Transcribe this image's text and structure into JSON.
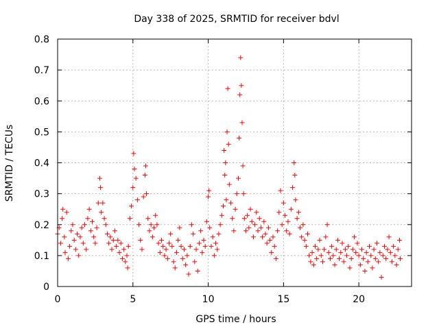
{
  "chart_data": {
    "type": "scatter",
    "title": "Day 338 of 2025, SRMTID for receiver bdvl",
    "xlabel": "GPS time / hours",
    "ylabel": "SRMTID / TECUs",
    "xlim": [
      0,
      23.5
    ],
    "ylim": [
      0,
      0.8
    ],
    "x_ticks": [
      "0",
      "5",
      "10",
      "15",
      "20"
    ],
    "x_tick_values": [
      0,
      5,
      10,
      15,
      20
    ],
    "y_ticks": [
      "0",
      "0.1",
      "0.2",
      "0.3",
      "0.4",
      "0.5",
      "0.6",
      "0.7",
      "0.8"
    ],
    "y_tick_values": [
      0,
      0.1,
      0.2,
      0.3,
      0.4,
      0.5,
      0.6,
      0.7,
      0.8
    ],
    "grid": true,
    "marker": "+",
    "color": "#ff0000",
    "series": [
      {
        "name": "SRMTID",
        "points": [
          [
            0.0,
            0.17
          ],
          [
            0.1,
            0.19
          ],
          [
            0.2,
            0.14
          ],
          [
            0.3,
            0.22
          ],
          [
            0.35,
            0.25
          ],
          [
            0.45,
            0.16
          ],
          [
            0.5,
            0.11
          ],
          [
            0.6,
            0.24
          ],
          [
            0.7,
            0.09
          ],
          [
            0.8,
            0.13
          ],
          [
            0.9,
            0.18
          ],
          [
            1.0,
            0.2
          ],
          [
            1.1,
            0.15
          ],
          [
            1.2,
            0.12
          ],
          [
            1.3,
            0.17
          ],
          [
            1.4,
            0.1
          ],
          [
            1.5,
            0.16
          ],
          [
            1.6,
            0.19
          ],
          [
            1.7,
            0.14
          ],
          [
            1.8,
            0.2
          ],
          [
            1.9,
            0.12
          ],
          [
            2.0,
            0.22
          ],
          [
            2.1,
            0.25
          ],
          [
            2.2,
            0.18
          ],
          [
            2.3,
            0.21
          ],
          [
            2.4,
            0.16
          ],
          [
            2.5,
            0.14
          ],
          [
            2.6,
            0.19
          ],
          [
            2.7,
            0.27
          ],
          [
            2.8,
            0.35
          ],
          [
            2.85,
            0.32
          ],
          [
            2.9,
            0.24
          ],
          [
            3.0,
            0.27
          ],
          [
            3.1,
            0.22
          ],
          [
            3.2,
            0.2
          ],
          [
            3.3,
            0.17
          ],
          [
            3.4,
            0.14
          ],
          [
            3.5,
            0.16
          ],
          [
            3.6,
            0.12
          ],
          [
            3.7,
            0.15
          ],
          [
            3.8,
            0.18
          ],
          [
            3.9,
            0.13
          ],
          [
            4.0,
            0.15
          ],
          [
            4.1,
            0.11
          ],
          [
            4.2,
            0.14
          ],
          [
            4.3,
            0.09
          ],
          [
            4.4,
            0.12
          ],
          [
            4.5,
            0.08
          ],
          [
            4.6,
            0.1
          ],
          [
            4.65,
            0.06
          ],
          [
            4.7,
            0.13
          ],
          [
            4.8,
            0.22
          ],
          [
            4.9,
            0.26
          ],
          [
            5.0,
            0.32
          ],
          [
            5.05,
            0.43
          ],
          [
            5.1,
            0.38
          ],
          [
            5.2,
            0.35
          ],
          [
            5.3,
            0.28
          ],
          [
            5.4,
            0.2
          ],
          [
            5.5,
            0.15
          ],
          [
            5.6,
            0.12
          ],
          [
            5.7,
            0.29
          ],
          [
            5.8,
            0.36
          ],
          [
            5.85,
            0.39
          ],
          [
            5.9,
            0.3
          ],
          [
            6.0,
            0.22
          ],
          [
            6.1,
            0.18
          ],
          [
            6.2,
            0.2
          ],
          [
            6.3,
            0.16
          ],
          [
            6.4,
            0.19
          ],
          [
            6.5,
            0.23
          ],
          [
            6.6,
            0.2
          ],
          [
            6.7,
            0.14
          ],
          [
            6.8,
            0.11
          ],
          [
            6.9,
            0.15
          ],
          [
            7.0,
            0.13
          ],
          [
            7.1,
            0.1
          ],
          [
            7.2,
            0.12
          ],
          [
            7.3,
            0.09
          ],
          [
            7.4,
            0.14
          ],
          [
            7.5,
            0.17
          ],
          [
            7.6,
            0.13
          ],
          [
            7.7,
            0.08
          ],
          [
            7.8,
            0.06
          ],
          [
            7.9,
            0.11
          ],
          [
            8.0,
            0.15
          ],
          [
            8.1,
            0.19
          ],
          [
            8.2,
            0.13
          ],
          [
            8.3,
            0.09
          ],
          [
            8.4,
            0.12
          ],
          [
            8.5,
            0.07
          ],
          [
            8.6,
            0.1
          ],
          [
            8.7,
            0.04
          ],
          [
            8.8,
            0.13
          ],
          [
            8.9,
            0.2
          ],
          [
            9.0,
            0.17
          ],
          [
            9.1,
            0.08
          ],
          [
            9.2,
            0.12
          ],
          [
            9.3,
            0.05
          ],
          [
            9.4,
            0.14
          ],
          [
            9.5,
            0.18
          ],
          [
            9.6,
            0.11
          ],
          [
            9.7,
            0.15
          ],
          [
            9.8,
            0.13
          ],
          [
            9.9,
            0.21
          ],
          [
            10.0,
            0.29
          ],
          [
            10.05,
            0.31
          ],
          [
            10.1,
            0.19
          ],
          [
            10.2,
            0.13
          ],
          [
            10.3,
            0.16
          ],
          [
            10.4,
            0.1
          ],
          [
            10.5,
            0.14
          ],
          [
            10.6,
            0.12
          ],
          [
            10.7,
            0.17
          ],
          [
            10.8,
            0.2
          ],
          [
            10.9,
            0.23
          ],
          [
            11.0,
            0.26
          ],
          [
            11.05,
            0.44
          ],
          [
            11.1,
            0.36
          ],
          [
            11.15,
            0.4
          ],
          [
            11.2,
            0.28
          ],
          [
            11.25,
            0.5
          ],
          [
            11.3,
            0.64
          ],
          [
            11.35,
            0.46
          ],
          [
            11.4,
            0.33
          ],
          [
            11.5,
            0.27
          ],
          [
            11.6,
            0.22
          ],
          [
            11.7,
            0.18
          ],
          [
            11.8,
            0.25
          ],
          [
            11.9,
            0.3
          ],
          [
            12.0,
            0.35
          ],
          [
            12.05,
            0.48
          ],
          [
            12.1,
            0.62
          ],
          [
            12.15,
            0.74
          ],
          [
            12.2,
            0.65
          ],
          [
            12.25,
            0.53
          ],
          [
            12.3,
            0.39
          ],
          [
            12.35,
            0.3
          ],
          [
            12.4,
            0.22
          ],
          [
            12.5,
            0.18
          ],
          [
            12.6,
            0.23
          ],
          [
            12.7,
            0.19
          ],
          [
            12.8,
            0.25
          ],
          [
            12.9,
            0.21
          ],
          [
            13.0,
            0.16
          ],
          [
            13.1,
            0.2
          ],
          [
            13.2,
            0.24
          ],
          [
            13.3,
            0.18
          ],
          [
            13.4,
            0.22
          ],
          [
            13.5,
            0.19
          ],
          [
            13.6,
            0.16
          ],
          [
            13.7,
            0.21
          ],
          [
            13.8,
            0.17
          ],
          [
            13.9,
            0.14
          ],
          [
            14.0,
            0.19
          ],
          [
            14.1,
            0.15
          ],
          [
            14.2,
            0.11
          ],
          [
            14.3,
            0.16
          ],
          [
            14.4,
            0.13
          ],
          [
            14.5,
            0.09
          ],
          [
            14.6,
            0.18
          ],
          [
            14.7,
            0.24
          ],
          [
            14.8,
            0.31
          ],
          [
            14.9,
            0.2
          ],
          [
            15.0,
            0.27
          ],
          [
            15.1,
            0.23
          ],
          [
            15.2,
            0.18
          ],
          [
            15.3,
            0.21
          ],
          [
            15.4,
            0.17
          ],
          [
            15.5,
            0.25
          ],
          [
            15.6,
            0.32
          ],
          [
            15.7,
            0.4
          ],
          [
            15.75,
            0.36
          ],
          [
            15.8,
            0.28
          ],
          [
            15.9,
            0.22
          ],
          [
            16.0,
            0.24
          ],
          [
            16.1,
            0.19
          ],
          [
            16.2,
            0.16
          ],
          [
            16.3,
            0.2
          ],
          [
            16.4,
            0.15
          ],
          [
            16.5,
            0.13
          ],
          [
            16.6,
            0.17
          ],
          [
            16.7,
            0.1
          ],
          [
            16.8,
            0.08
          ],
          [
            16.9,
            0.11
          ],
          [
            17.0,
            0.07
          ],
          [
            17.1,
            0.13
          ],
          [
            17.2,
            0.09
          ],
          [
            17.3,
            0.12
          ],
          [
            17.4,
            0.15
          ],
          [
            17.5,
            0.1
          ],
          [
            17.6,
            0.08
          ],
          [
            17.7,
            0.12
          ],
          [
            17.8,
            0.16
          ],
          [
            17.9,
            0.2
          ],
          [
            18.0,
            0.11
          ],
          [
            18.1,
            0.09
          ],
          [
            18.2,
            0.13
          ],
          [
            18.3,
            0.1
          ],
          [
            18.4,
            0.07
          ],
          [
            18.5,
            0.12
          ],
          [
            18.6,
            0.15
          ],
          [
            18.7,
            0.09
          ],
          [
            18.8,
            0.11
          ],
          [
            18.9,
            0.14
          ],
          [
            19.0,
            0.08
          ],
          [
            19.1,
            0.12
          ],
          [
            19.2,
            0.1
          ],
          [
            19.3,
            0.13
          ],
          [
            19.4,
            0.06
          ],
          [
            19.5,
            0.09
          ],
          [
            19.6,
            0.12
          ],
          [
            19.7,
            0.16
          ],
          [
            19.8,
            0.11
          ],
          [
            19.9,
            0.14
          ],
          [
            20.0,
            0.1
          ],
          [
            20.1,
            0.07
          ],
          [
            20.2,
            0.12
          ],
          [
            20.3,
            0.09
          ],
          [
            20.4,
            0.05
          ],
          [
            20.5,
            0.11
          ],
          [
            20.6,
            0.08
          ],
          [
            20.7,
            0.13
          ],
          [
            20.8,
            0.1
          ],
          [
            20.9,
            0.06
          ],
          [
            21.0,
            0.12
          ],
          [
            21.1,
            0.09
          ],
          [
            21.2,
            0.14
          ],
          [
            21.3,
            0.08
          ],
          [
            21.4,
            0.11
          ],
          [
            21.5,
            0.03
          ],
          [
            21.6,
            0.1
          ],
          [
            21.7,
            0.13
          ],
          [
            21.8,
            0.09
          ],
          [
            21.9,
            0.12
          ],
          [
            22.0,
            0.16
          ],
          [
            22.1,
            0.11
          ],
          [
            22.2,
            0.08
          ],
          [
            22.3,
            0.13
          ],
          [
            22.4,
            0.1
          ],
          [
            22.5,
            0.07
          ],
          [
            22.6,
            0.12
          ],
          [
            22.7,
            0.15
          ],
          [
            22.75,
            0.09
          ]
        ]
      }
    ]
  }
}
